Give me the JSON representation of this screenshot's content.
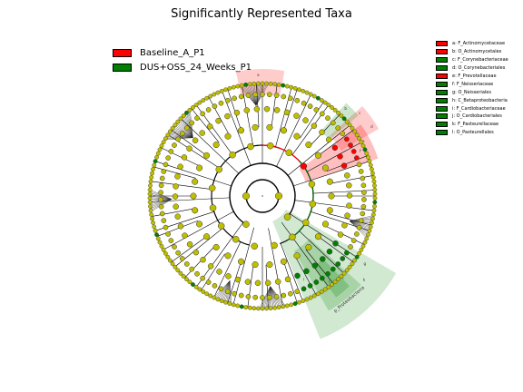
{
  "chart_data": {
    "type": "cladogram",
    "title": "Significantly Represented Taxa",
    "groups": [
      {
        "name": "Baseline_A_P1",
        "color": "#ff0000"
      },
      {
        "name": "DUS+OSS_24_Weeks_P1",
        "color": "#008000"
      }
    ],
    "taxa": [
      {
        "key": "a",
        "label": "a: F_Actinomycetaceae",
        "group": "Baseline_A_P1",
        "color": "#ff0000"
      },
      {
        "key": "b",
        "label": "b: O_Actinomycetales",
        "group": "Baseline_A_P1",
        "color": "#ff0000"
      },
      {
        "key": "c",
        "label": "c: F_Corynebacteriaceae",
        "group": "DUS+OSS_24_Weeks_P1",
        "color": "#008000"
      },
      {
        "key": "d",
        "label": "d: O_Corynebacteriales",
        "group": "DUS+OSS_24_Weeks_P1",
        "color": "#008000"
      },
      {
        "key": "e",
        "label": "e: F_Prevotellaceae",
        "group": "Baseline_A_P1",
        "color": "#ff0000"
      },
      {
        "key": "f",
        "label": "f: F_Neisseriaceae",
        "group": "DUS+OSS_24_Weeks_P1",
        "color": "#008000"
      },
      {
        "key": "g",
        "label": "g: O_Neisseriales",
        "group": "DUS+OSS_24_Weeks_P1",
        "color": "#008000"
      },
      {
        "key": "h",
        "label": "h: C_Betaproteobacteria",
        "group": "DUS+OSS_24_Weeks_P1",
        "color": "#008000"
      },
      {
        "key": "i",
        "label": "i: F_Cardiobacteriaceae",
        "group": "DUS+OSS_24_Weeks_P1",
        "color": "#008000"
      },
      {
        "key": "j",
        "label": "j: O_Cardiobacteriales",
        "group": "DUS+OSS_24_Weeks_P1",
        "color": "#008000"
      },
      {
        "key": "k",
        "label": "k: F_Pasteurellaceae",
        "group": "DUS+OSS_24_Weeks_P1",
        "color": "#008000"
      },
      {
        "key": "l",
        "label": "l: O_Pasteurellales",
        "group": "DUS+OSS_24_Weeks_P1",
        "color": "#008000"
      }
    ],
    "sector_labels": [
      "a",
      "b",
      "c",
      "d",
      "e",
      "f",
      "g",
      "h",
      "i",
      "j",
      "k",
      "l"
    ],
    "outer_labels": [
      "p_Proteobacteria"
    ],
    "node_color": "#bfbf00"
  }
}
